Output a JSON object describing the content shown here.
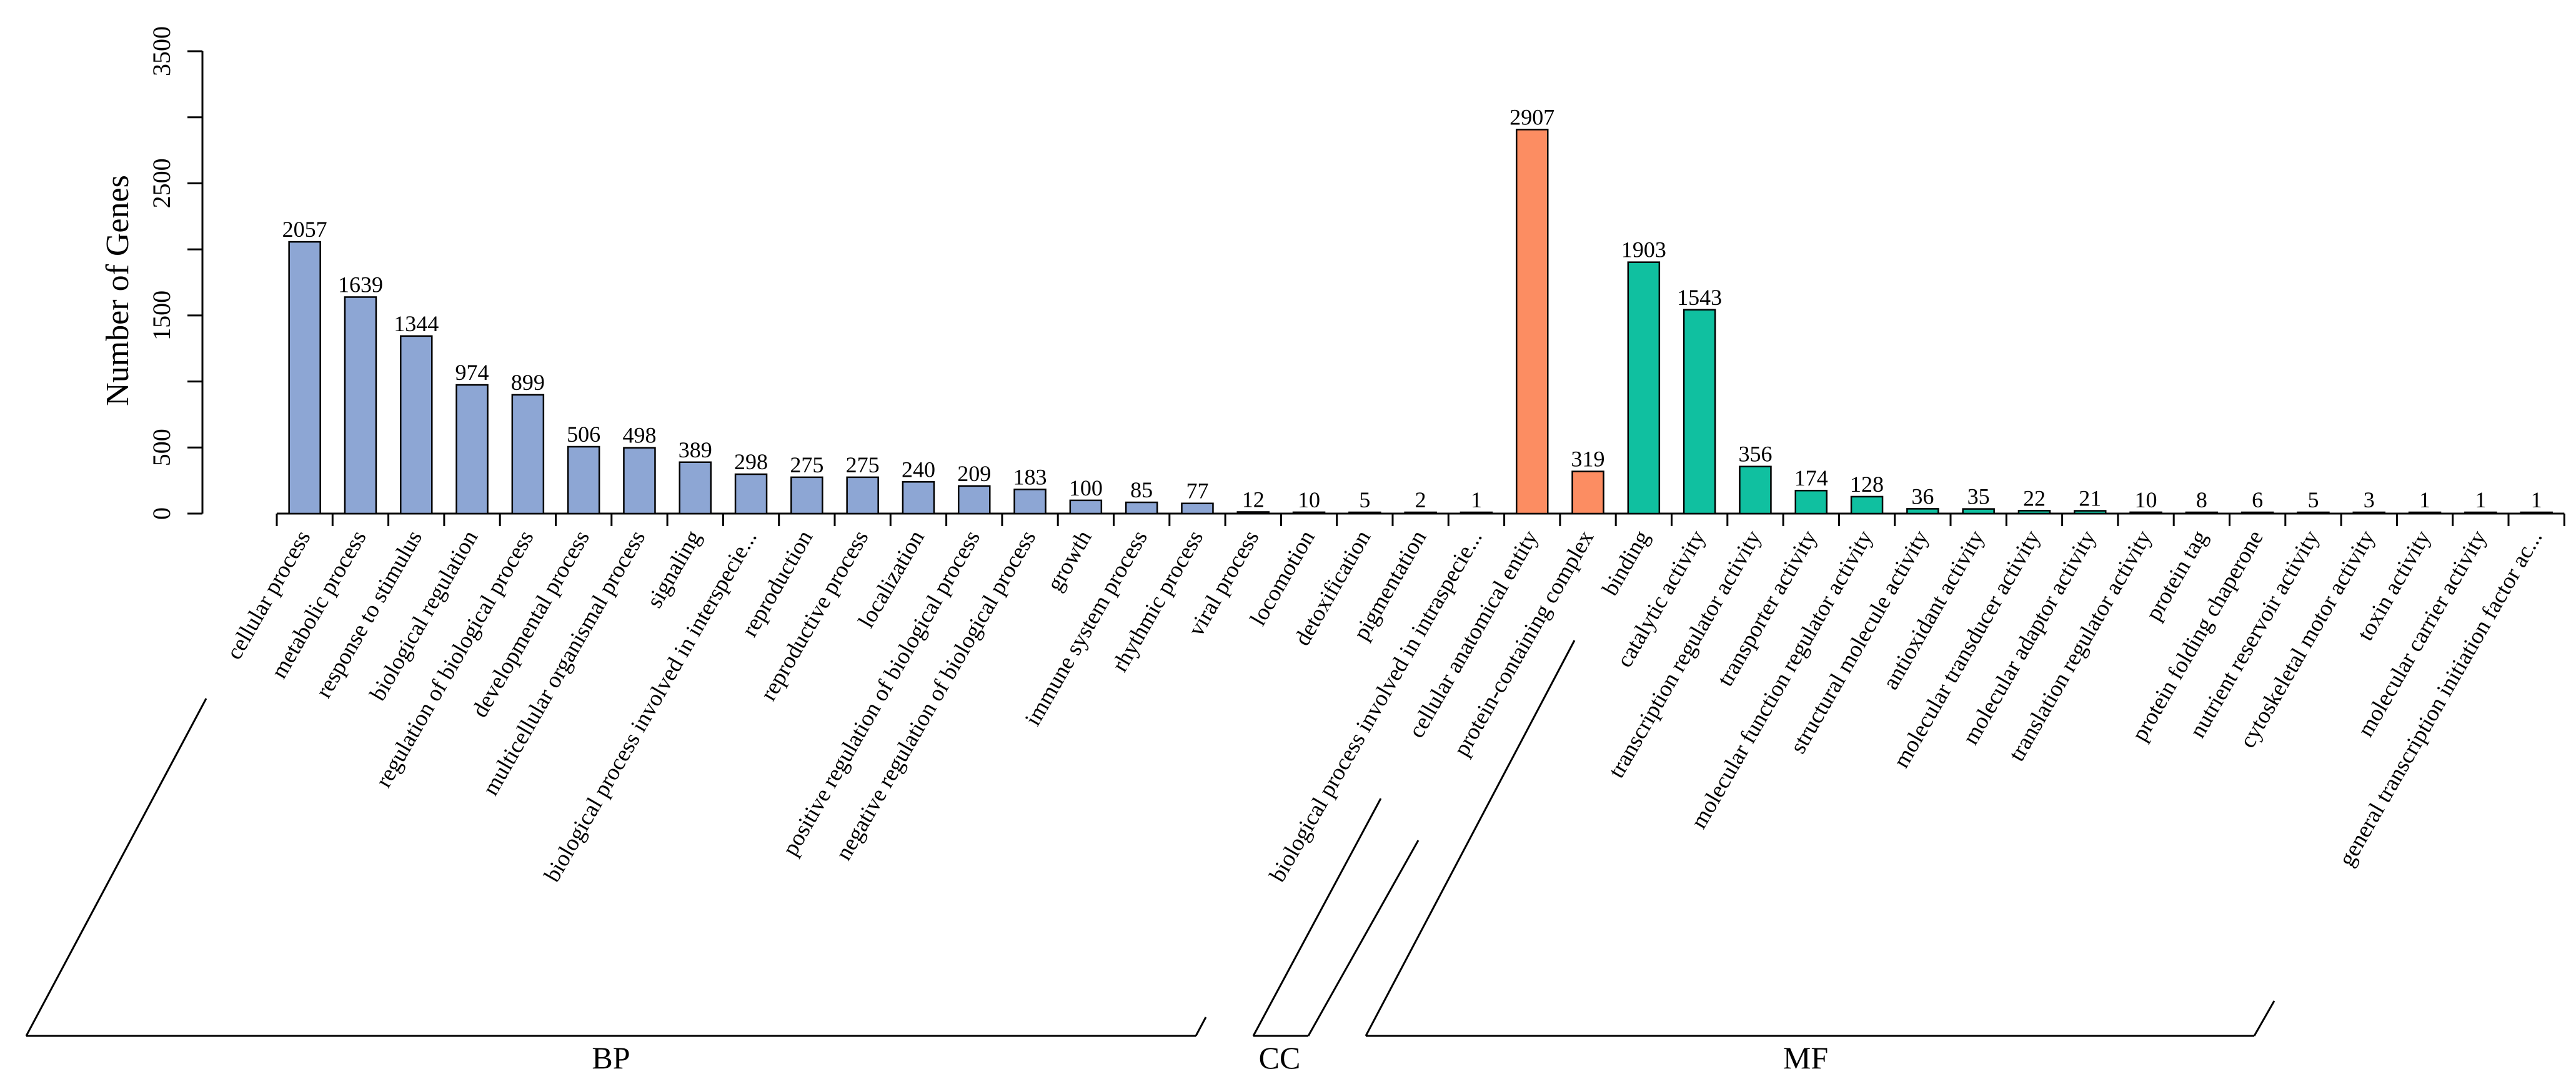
{
  "chart_data": {
    "type": "bar",
    "ylabel": "Number of Genes",
    "ylim": [
      0,
      3500
    ],
    "yticks": [
      0,
      500,
      1500,
      2500,
      3500
    ],
    "categories": [
      "cellular process",
      "metabolic process",
      "response to stimulus",
      "biological regulation",
      "regulation of biological process",
      "developmental process",
      "multicellular organismal process",
      "signaling",
      "biological process involved in interspecie...",
      "reproduction",
      "reproductive process",
      "localization",
      "positive regulation of biological process",
      "negative regulation of biological process",
      "growth",
      "immune system process",
      "rhythmic process",
      "viral process",
      "locomotion",
      "detoxification",
      "pigmentation",
      "biological process involved in intraspecie...",
      "cellular anatomical entity",
      "protein-containing complex",
      "binding",
      "catalytic activity",
      "transcription regulator activity",
      "transporter activity",
      "molecular function regulator activity",
      "structural molecule activity",
      "antioxidant activity",
      "molecular transducer activity",
      "molecular adaptor activity",
      "translation regulator activity",
      "protein tag",
      "protein folding chaperone",
      "nutrient reservoir activity",
      "cytoskeletal motor activity",
      "toxin activity",
      "molecular carrier activity",
      "general transcription initiation factor ac..."
    ],
    "values": [
      2057,
      1639,
      1344,
      974,
      899,
      506,
      498,
      389,
      298,
      275,
      275,
      240,
      209,
      183,
      100,
      85,
      77,
      12,
      10,
      5,
      2,
      1,
      2907,
      319,
      1903,
      1543,
      356,
      174,
      128,
      36,
      35,
      22,
      21,
      10,
      8,
      6,
      5,
      3,
      1,
      1,
      1
    ],
    "value_labels": [
      "2057",
      "1639",
      "1344",
      "974",
      "899",
      "506",
      "498",
      "389",
      "298",
      "275",
      "275",
      "240",
      "209",
      "183",
      "100",
      "85",
      "77",
      "12",
      "10",
      "5",
      "2",
      "1",
      "2907",
      "319",
      "1903",
      "1543",
      "356",
      "174",
      "128",
      "36",
      "35",
      "22",
      "21",
      "10",
      "8",
      "6",
      "5",
      "3",
      "1",
      "1",
      "1"
    ],
    "groups": [
      {
        "name": "BP",
        "start": 0,
        "end": 21,
        "color": "#8DA6D4"
      },
      {
        "name": "CC",
        "start": 22,
        "end": 23,
        "color": "#FC8D62"
      },
      {
        "name": "MF",
        "start": 24,
        "end": 40,
        "color": "#10C0A0"
      }
    ]
  }
}
